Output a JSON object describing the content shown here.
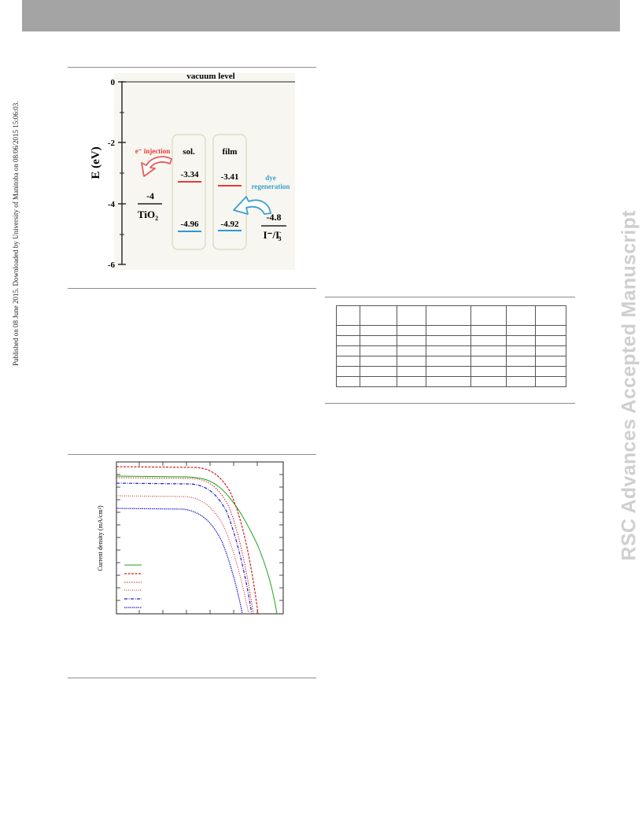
{
  "side_note": "Published on 08 June 2015. Downloaded by University of Manitoba on 08/06/2015 15:06:03.",
  "watermark": "RSC Advances Accepted Manuscript",
  "energy_diagram": {
    "top_label": "vacuum level",
    "y_axis_label": "E (eV)",
    "y_ticks": [
      "0",
      "-2",
      "-4",
      "-6"
    ],
    "states": {
      "solution": {
        "label": "sol.",
        "lumo": "-3.34",
        "homo": "-4.96"
      },
      "film": {
        "label": "film",
        "lumo": "-3.41",
        "homo": "-4.92"
      }
    },
    "tio2": {
      "value": "-4",
      "label": "TiO",
      "subscript": "2"
    },
    "electrolyte": {
      "value": "-4.8",
      "label": "I⁻/I",
      "subscript": "3",
      "superscript": "-"
    },
    "injection_label": "e⁻ injection",
    "regeneration_label_1": "dye",
    "regeneration_label_2": "regeneration",
    "colors": {
      "lumo": "#e83a3a",
      "homo": "#2b9ad8",
      "injection_arrow": "#e85a5a",
      "regeneration_arrow": "#3aa0cc"
    }
  },
  "jv_plot": {
    "y_label": "Current density (mA/cm²)",
    "series_colors": [
      "#1aa51a",
      "#cc1f1f",
      "#cc1f1f",
      "#cc1f1f",
      "#1a1acc",
      "#1a1acc"
    ]
  },
  "table": {
    "rows": 7,
    "cols": 8
  }
}
